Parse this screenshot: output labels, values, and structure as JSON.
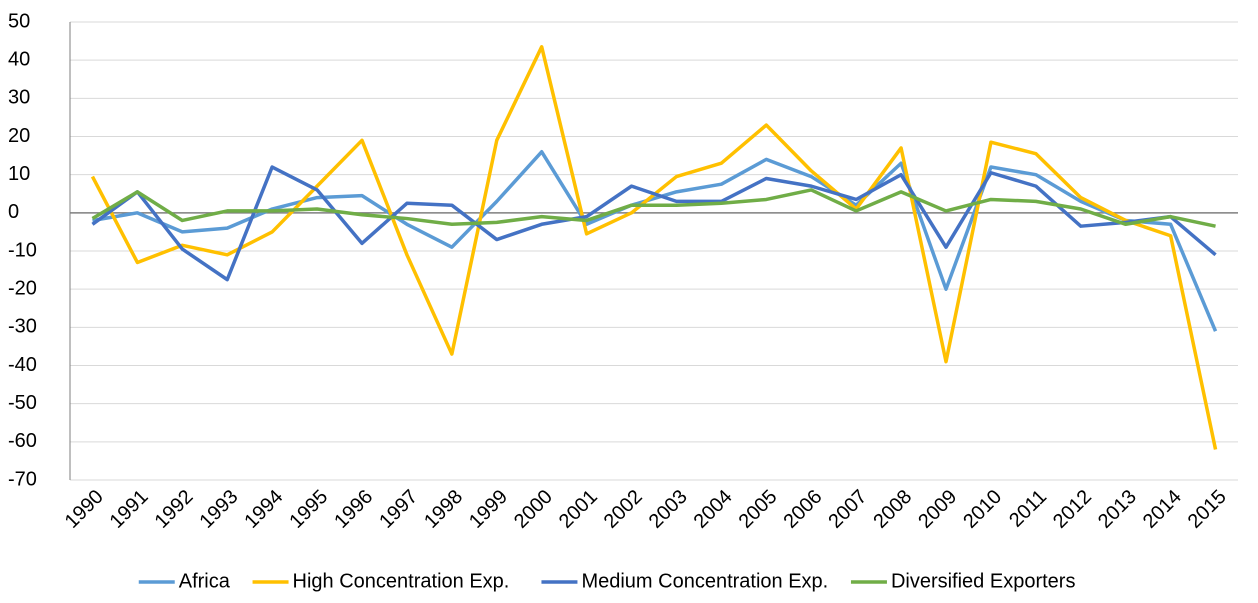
{
  "chart_data": {
    "type": "line",
    "categories": [
      "1990",
      "1991",
      "1992",
      "1993",
      "1994",
      "1995",
      "1996",
      "1997",
      "1998",
      "1999",
      "2000",
      "2001",
      "2002",
      "2003",
      "2004",
      "2005",
      "2006",
      "2007",
      "2008",
      "2009",
      "2010",
      "2011",
      "2012",
      "2013",
      "2014",
      "2015"
    ],
    "series": [
      {
        "name": "Africa",
        "color": "#5b9bd5",
        "values": [
          -2,
          0,
          -5,
          -4,
          1,
          4,
          4.5,
          -3,
          -9,
          3,
          16,
          -3,
          2,
          5.5,
          7.5,
          14,
          9.5,
          2,
          13,
          -20,
          12,
          10,
          3,
          -2,
          -3,
          -31
        ]
      },
      {
        "name": "High Concentration Exp.",
        "color": "#ffc000",
        "values": [
          9.5,
          -13,
          -8.5,
          -11,
          -5,
          7,
          19,
          -11,
          -37,
          19,
          43.5,
          -5.5,
          0,
          9.5,
          13,
          23,
          11,
          1,
          17,
          -39,
          18.5,
          15.5,
          4,
          -2,
          -6,
          -62
        ]
      },
      {
        "name": "Medium Concentration Exp.",
        "color": "#4472c4",
        "values": [
          -3,
          5.5,
          -9.5,
          -17.5,
          12,
          6,
          -8,
          2.5,
          2,
          -7,
          -3,
          -1,
          7,
          3,
          3,
          9,
          7,
          3.5,
          10,
          -9,
          10.5,
          7,
          -3.5,
          -2.5,
          -1,
          -11
        ]
      },
      {
        "name": "Diversified Exporters",
        "color": "#70ad47",
        "values": [
          -1.5,
          5.5,
          -2,
          0.5,
          0.5,
          1,
          -0.5,
          -1.5,
          -3,
          -2.5,
          -1,
          -2,
          2,
          2,
          2.5,
          3.5,
          6,
          0.5,
          5.5,
          0.5,
          3.5,
          3,
          1,
          -3,
          -1,
          -3.5
        ]
      }
    ],
    "ylim": [
      -70,
      50
    ],
    "yticks": [
      -70,
      -60,
      -50,
      -40,
      -30,
      -20,
      -10,
      0,
      10,
      20,
      30,
      40,
      50
    ],
    "grid": true,
    "legend": "bottom"
  }
}
